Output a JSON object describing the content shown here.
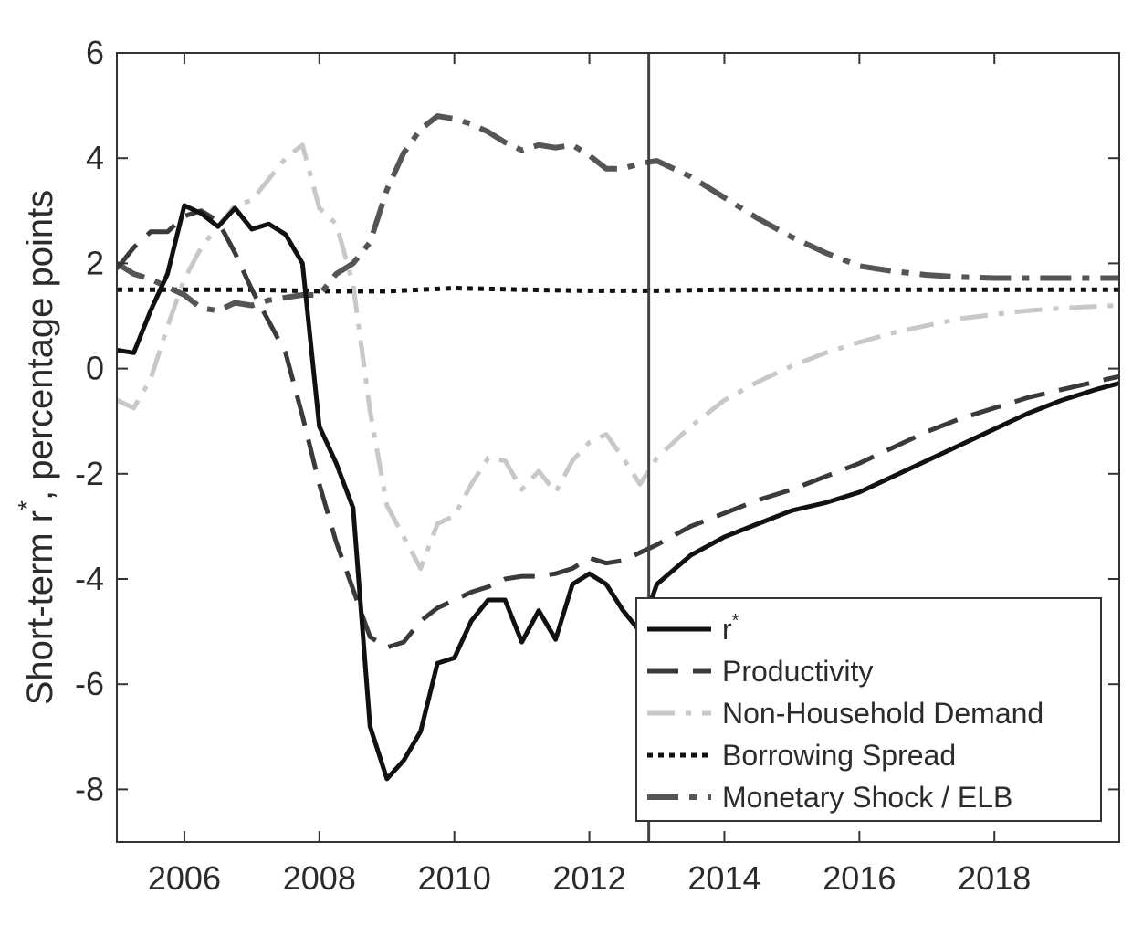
{
  "chart_data": {
    "type": "line",
    "title": "",
    "xlabel": "",
    "ylabel": "Short-term r",
    "ylabel_superscript": "*",
    "ylabel_suffix": ", percentage points",
    "xlim": [
      2005.0,
      2019.85
    ],
    "ylim": [
      -9,
      6
    ],
    "xticks": [
      2006,
      2008,
      2010,
      2012,
      2014,
      2016,
      2018
    ],
    "xtick_labels": [
      "2006",
      "2008",
      "2010",
      "2012",
      "2014",
      "2016",
      "2018"
    ],
    "yticks": [
      6,
      4,
      2,
      0,
      -2,
      -4,
      -6,
      -8
    ],
    "ytick_labels": [
      "6",
      "4",
      "2",
      "0",
      "-2",
      "-4",
      "-6",
      "-8"
    ],
    "vertical_line_x": 2012.88,
    "grid": false,
    "legend_position": "bottom-right",
    "series": [
      {
        "name": "r",
        "name_superscript": "*",
        "color": "#111111",
        "dash": "",
        "width": 5,
        "points": [
          [
            2005.0,
            0.35
          ],
          [
            2005.25,
            0.3
          ],
          [
            2005.5,
            1.1
          ],
          [
            2005.75,
            1.8
          ],
          [
            2006.0,
            3.1
          ],
          [
            2006.25,
            2.95
          ],
          [
            2006.5,
            2.7
          ],
          [
            2006.75,
            3.05
          ],
          [
            2007.0,
            2.65
          ],
          [
            2007.25,
            2.75
          ],
          [
            2007.5,
            2.55
          ],
          [
            2007.75,
            2.0
          ],
          [
            2008.0,
            -1.1
          ],
          [
            2008.25,
            -1.8
          ],
          [
            2008.5,
            -2.65
          ],
          [
            2008.75,
            -6.8
          ],
          [
            2009.0,
            -7.8
          ],
          [
            2009.25,
            -7.45
          ],
          [
            2009.5,
            -6.9
          ],
          [
            2009.75,
            -5.6
          ],
          [
            2010.0,
            -5.5
          ],
          [
            2010.25,
            -4.8
          ],
          [
            2010.5,
            -4.4
          ],
          [
            2010.75,
            -4.4
          ],
          [
            2011.0,
            -5.2
          ],
          [
            2011.25,
            -4.6
          ],
          [
            2011.5,
            -5.15
          ],
          [
            2011.75,
            -4.1
          ],
          [
            2012.0,
            -3.9
          ],
          [
            2012.25,
            -4.1
          ],
          [
            2012.5,
            -4.6
          ],
          [
            2012.75,
            -5.0
          ],
          [
            2013.0,
            -4.1
          ],
          [
            2013.5,
            -3.55
          ],
          [
            2014.0,
            -3.2
          ],
          [
            2014.5,
            -2.95
          ],
          [
            2015.0,
            -2.7
          ],
          [
            2015.5,
            -2.55
          ],
          [
            2016.0,
            -2.35
          ],
          [
            2016.5,
            -2.05
          ],
          [
            2017.0,
            -1.75
          ],
          [
            2017.5,
            -1.45
          ],
          [
            2018.0,
            -1.15
          ],
          [
            2018.5,
            -0.85
          ],
          [
            2019.0,
            -0.6
          ],
          [
            2019.5,
            -0.4
          ],
          [
            2019.85,
            -0.28
          ]
        ]
      },
      {
        "name": "Productivity",
        "color": "#3a3a3a",
        "dash": "34 16",
        "width": 5,
        "points": [
          [
            2005.0,
            1.9
          ],
          [
            2005.25,
            2.3
          ],
          [
            2005.5,
            2.6
          ],
          [
            2005.75,
            2.6
          ],
          [
            2006.0,
            2.9
          ],
          [
            2006.25,
            3.0
          ],
          [
            2006.5,
            2.8
          ],
          [
            2006.75,
            2.2
          ],
          [
            2007.0,
            1.5
          ],
          [
            2007.25,
            0.9
          ],
          [
            2007.5,
            0.3
          ],
          [
            2007.75,
            -0.9
          ],
          [
            2008.0,
            -2.2
          ],
          [
            2008.25,
            -3.3
          ],
          [
            2008.5,
            -4.2
          ],
          [
            2008.75,
            -5.1
          ],
          [
            2009.0,
            -5.3
          ],
          [
            2009.25,
            -5.2
          ],
          [
            2009.5,
            -4.8
          ],
          [
            2009.75,
            -4.55
          ],
          [
            2010.0,
            -4.4
          ],
          [
            2010.25,
            -4.25
          ],
          [
            2010.5,
            -4.15
          ],
          [
            2010.75,
            -4.0
          ],
          [
            2011.0,
            -3.95
          ],
          [
            2011.25,
            -3.95
          ],
          [
            2011.5,
            -3.9
          ],
          [
            2011.75,
            -3.8
          ],
          [
            2012.0,
            -3.6
          ],
          [
            2012.25,
            -3.7
          ],
          [
            2012.5,
            -3.65
          ],
          [
            2012.75,
            -3.5
          ],
          [
            2013.0,
            -3.35
          ],
          [
            2013.5,
            -3.0
          ],
          [
            2014.0,
            -2.75
          ],
          [
            2014.5,
            -2.5
          ],
          [
            2015.0,
            -2.3
          ],
          [
            2015.5,
            -2.05
          ],
          [
            2016.0,
            -1.8
          ],
          [
            2016.5,
            -1.5
          ],
          [
            2017.0,
            -1.2
          ],
          [
            2017.5,
            -0.95
          ],
          [
            2018.0,
            -0.75
          ],
          [
            2018.5,
            -0.55
          ],
          [
            2019.0,
            -0.4
          ],
          [
            2019.5,
            -0.25
          ],
          [
            2019.85,
            -0.15
          ]
        ]
      },
      {
        "name": "Non-Household Demand",
        "color": "#c8c8c8",
        "dash": "30 12 6 12",
        "width": 5,
        "points": [
          [
            2005.0,
            -0.6
          ],
          [
            2005.25,
            -0.75
          ],
          [
            2005.5,
            -0.2
          ],
          [
            2005.75,
            0.8
          ],
          [
            2006.0,
            1.7
          ],
          [
            2006.25,
            2.3
          ],
          [
            2006.5,
            2.7
          ],
          [
            2006.75,
            3.1
          ],
          [
            2007.0,
            3.2
          ],
          [
            2007.25,
            3.6
          ],
          [
            2007.5,
            4.0
          ],
          [
            2007.75,
            4.25
          ],
          [
            2008.0,
            3.05
          ],
          [
            2008.25,
            2.75
          ],
          [
            2008.5,
            1.6
          ],
          [
            2008.75,
            -0.8
          ],
          [
            2009.0,
            -2.6
          ],
          [
            2009.25,
            -3.2
          ],
          [
            2009.5,
            -3.8
          ],
          [
            2009.75,
            -2.95
          ],
          [
            2010.0,
            -2.8
          ],
          [
            2010.25,
            -2.2
          ],
          [
            2010.5,
            -1.7
          ],
          [
            2010.75,
            -1.75
          ],
          [
            2011.0,
            -2.3
          ],
          [
            2011.25,
            -1.95
          ],
          [
            2011.5,
            -2.35
          ],
          [
            2011.75,
            -1.75
          ],
          [
            2012.0,
            -1.4
          ],
          [
            2012.25,
            -1.25
          ],
          [
            2012.5,
            -1.7
          ],
          [
            2012.75,
            -2.2
          ],
          [
            2013.0,
            -1.7
          ],
          [
            2013.5,
            -1.1
          ],
          [
            2014.0,
            -0.6
          ],
          [
            2014.5,
            -0.25
          ],
          [
            2015.0,
            0.05
          ],
          [
            2015.5,
            0.3
          ],
          [
            2016.0,
            0.5
          ],
          [
            2016.5,
            0.68
          ],
          [
            2017.0,
            0.82
          ],
          [
            2017.5,
            0.95
          ],
          [
            2018.0,
            1.03
          ],
          [
            2018.5,
            1.1
          ],
          [
            2019.0,
            1.15
          ],
          [
            2019.5,
            1.18
          ],
          [
            2019.85,
            1.2
          ]
        ]
      },
      {
        "name": "Borrowing Spread",
        "color": "#111111",
        "dash": "6 6",
        "width": 5,
        "points": [
          [
            2005.0,
            1.5
          ],
          [
            2006.0,
            1.5
          ],
          [
            2007.0,
            1.5
          ],
          [
            2008.0,
            1.47
          ],
          [
            2009.0,
            1.47
          ],
          [
            2010.0,
            1.53
          ],
          [
            2011.0,
            1.5
          ],
          [
            2012.0,
            1.48
          ],
          [
            2013.0,
            1.48
          ],
          [
            2014.0,
            1.5
          ],
          [
            2015.0,
            1.5
          ],
          [
            2016.0,
            1.5
          ],
          [
            2017.0,
            1.5
          ],
          [
            2018.0,
            1.5
          ],
          [
            2019.0,
            1.5
          ],
          [
            2019.85,
            1.5
          ]
        ]
      },
      {
        "name": "Monetary Shock / ELB",
        "color": "#555555",
        "dash": "34 12 8 12",
        "width": 6,
        "points": [
          [
            2005.0,
            2.0
          ],
          [
            2005.25,
            1.8
          ],
          [
            2005.5,
            1.7
          ],
          [
            2005.75,
            1.55
          ],
          [
            2006.0,
            1.4
          ],
          [
            2006.25,
            1.15
          ],
          [
            2006.5,
            1.1
          ],
          [
            2006.75,
            1.25
          ],
          [
            2007.0,
            1.2
          ],
          [
            2007.25,
            1.3
          ],
          [
            2007.5,
            1.35
          ],
          [
            2007.75,
            1.4
          ],
          [
            2008.0,
            1.4
          ],
          [
            2008.25,
            1.8
          ],
          [
            2008.5,
            2.0
          ],
          [
            2008.75,
            2.4
          ],
          [
            2009.0,
            3.4
          ],
          [
            2009.25,
            4.1
          ],
          [
            2009.5,
            4.55
          ],
          [
            2009.75,
            4.8
          ],
          [
            2010.0,
            4.75
          ],
          [
            2010.25,
            4.65
          ],
          [
            2010.5,
            4.5
          ],
          [
            2010.75,
            4.3
          ],
          [
            2011.0,
            4.15
          ],
          [
            2011.25,
            4.25
          ],
          [
            2011.5,
            4.2
          ],
          [
            2011.75,
            4.25
          ],
          [
            2012.0,
            4.05
          ],
          [
            2012.25,
            3.8
          ],
          [
            2012.5,
            3.8
          ],
          [
            2012.75,
            3.9
          ],
          [
            2013.0,
            3.95
          ],
          [
            2013.5,
            3.65
          ],
          [
            2014.0,
            3.25
          ],
          [
            2014.5,
            2.85
          ],
          [
            2015.0,
            2.5
          ],
          [
            2015.5,
            2.2
          ],
          [
            2016.0,
            1.95
          ],
          [
            2016.5,
            1.85
          ],
          [
            2017.0,
            1.78
          ],
          [
            2017.5,
            1.74
          ],
          [
            2018.0,
            1.72
          ],
          [
            2018.5,
            1.72
          ],
          [
            2019.0,
            1.72
          ],
          [
            2019.5,
            1.72
          ],
          [
            2019.85,
            1.72
          ]
        ]
      }
    ]
  }
}
